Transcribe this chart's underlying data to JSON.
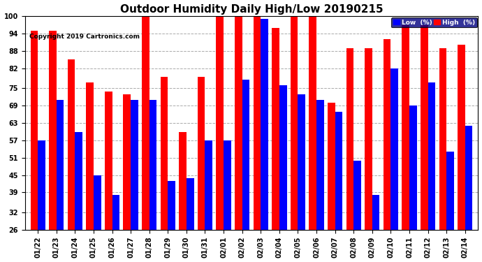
{
  "title": "Outdoor Humidity Daily High/Low 20190215",
  "copyright": "Copyright 2019 Cartronics.com",
  "categories": [
    "01/22",
    "01/23",
    "01/24",
    "01/25",
    "01/26",
    "01/27",
    "01/28",
    "01/29",
    "01/30",
    "01/31",
    "02/01",
    "02/02",
    "02/03",
    "02/04",
    "02/05",
    "02/06",
    "02/07",
    "02/08",
    "02/09",
    "02/10",
    "02/11",
    "02/12",
    "02/13",
    "02/14"
  ],
  "high_values": [
    95,
    95,
    85,
    77,
    74,
    73,
    100,
    79,
    60,
    79,
    100,
    100,
    100,
    96,
    100,
    100,
    70,
    89,
    89,
    92,
    97,
    97,
    89,
    90
  ],
  "low_values": [
    57,
    71,
    60,
    45,
    38,
    71,
    71,
    43,
    44,
    57,
    57,
    78,
    99,
    76,
    73,
    71,
    67,
    50,
    38,
    82,
    69,
    77,
    53,
    62
  ],
  "high_color": "#ff0000",
  "low_color": "#0000ff",
  "bg_color": "#ffffff",
  "grid_color": "#aaaaaa",
  "ylim_min": 26,
  "ylim_max": 100,
  "yticks": [
    26,
    32,
    39,
    45,
    51,
    57,
    63,
    69,
    75,
    82,
    88,
    94,
    100
  ],
  "bar_width": 0.4,
  "title_fontsize": 11,
  "tick_fontsize": 7,
  "legend_low_label": "Low  (%)",
  "legend_high_label": "High  (%)"
}
